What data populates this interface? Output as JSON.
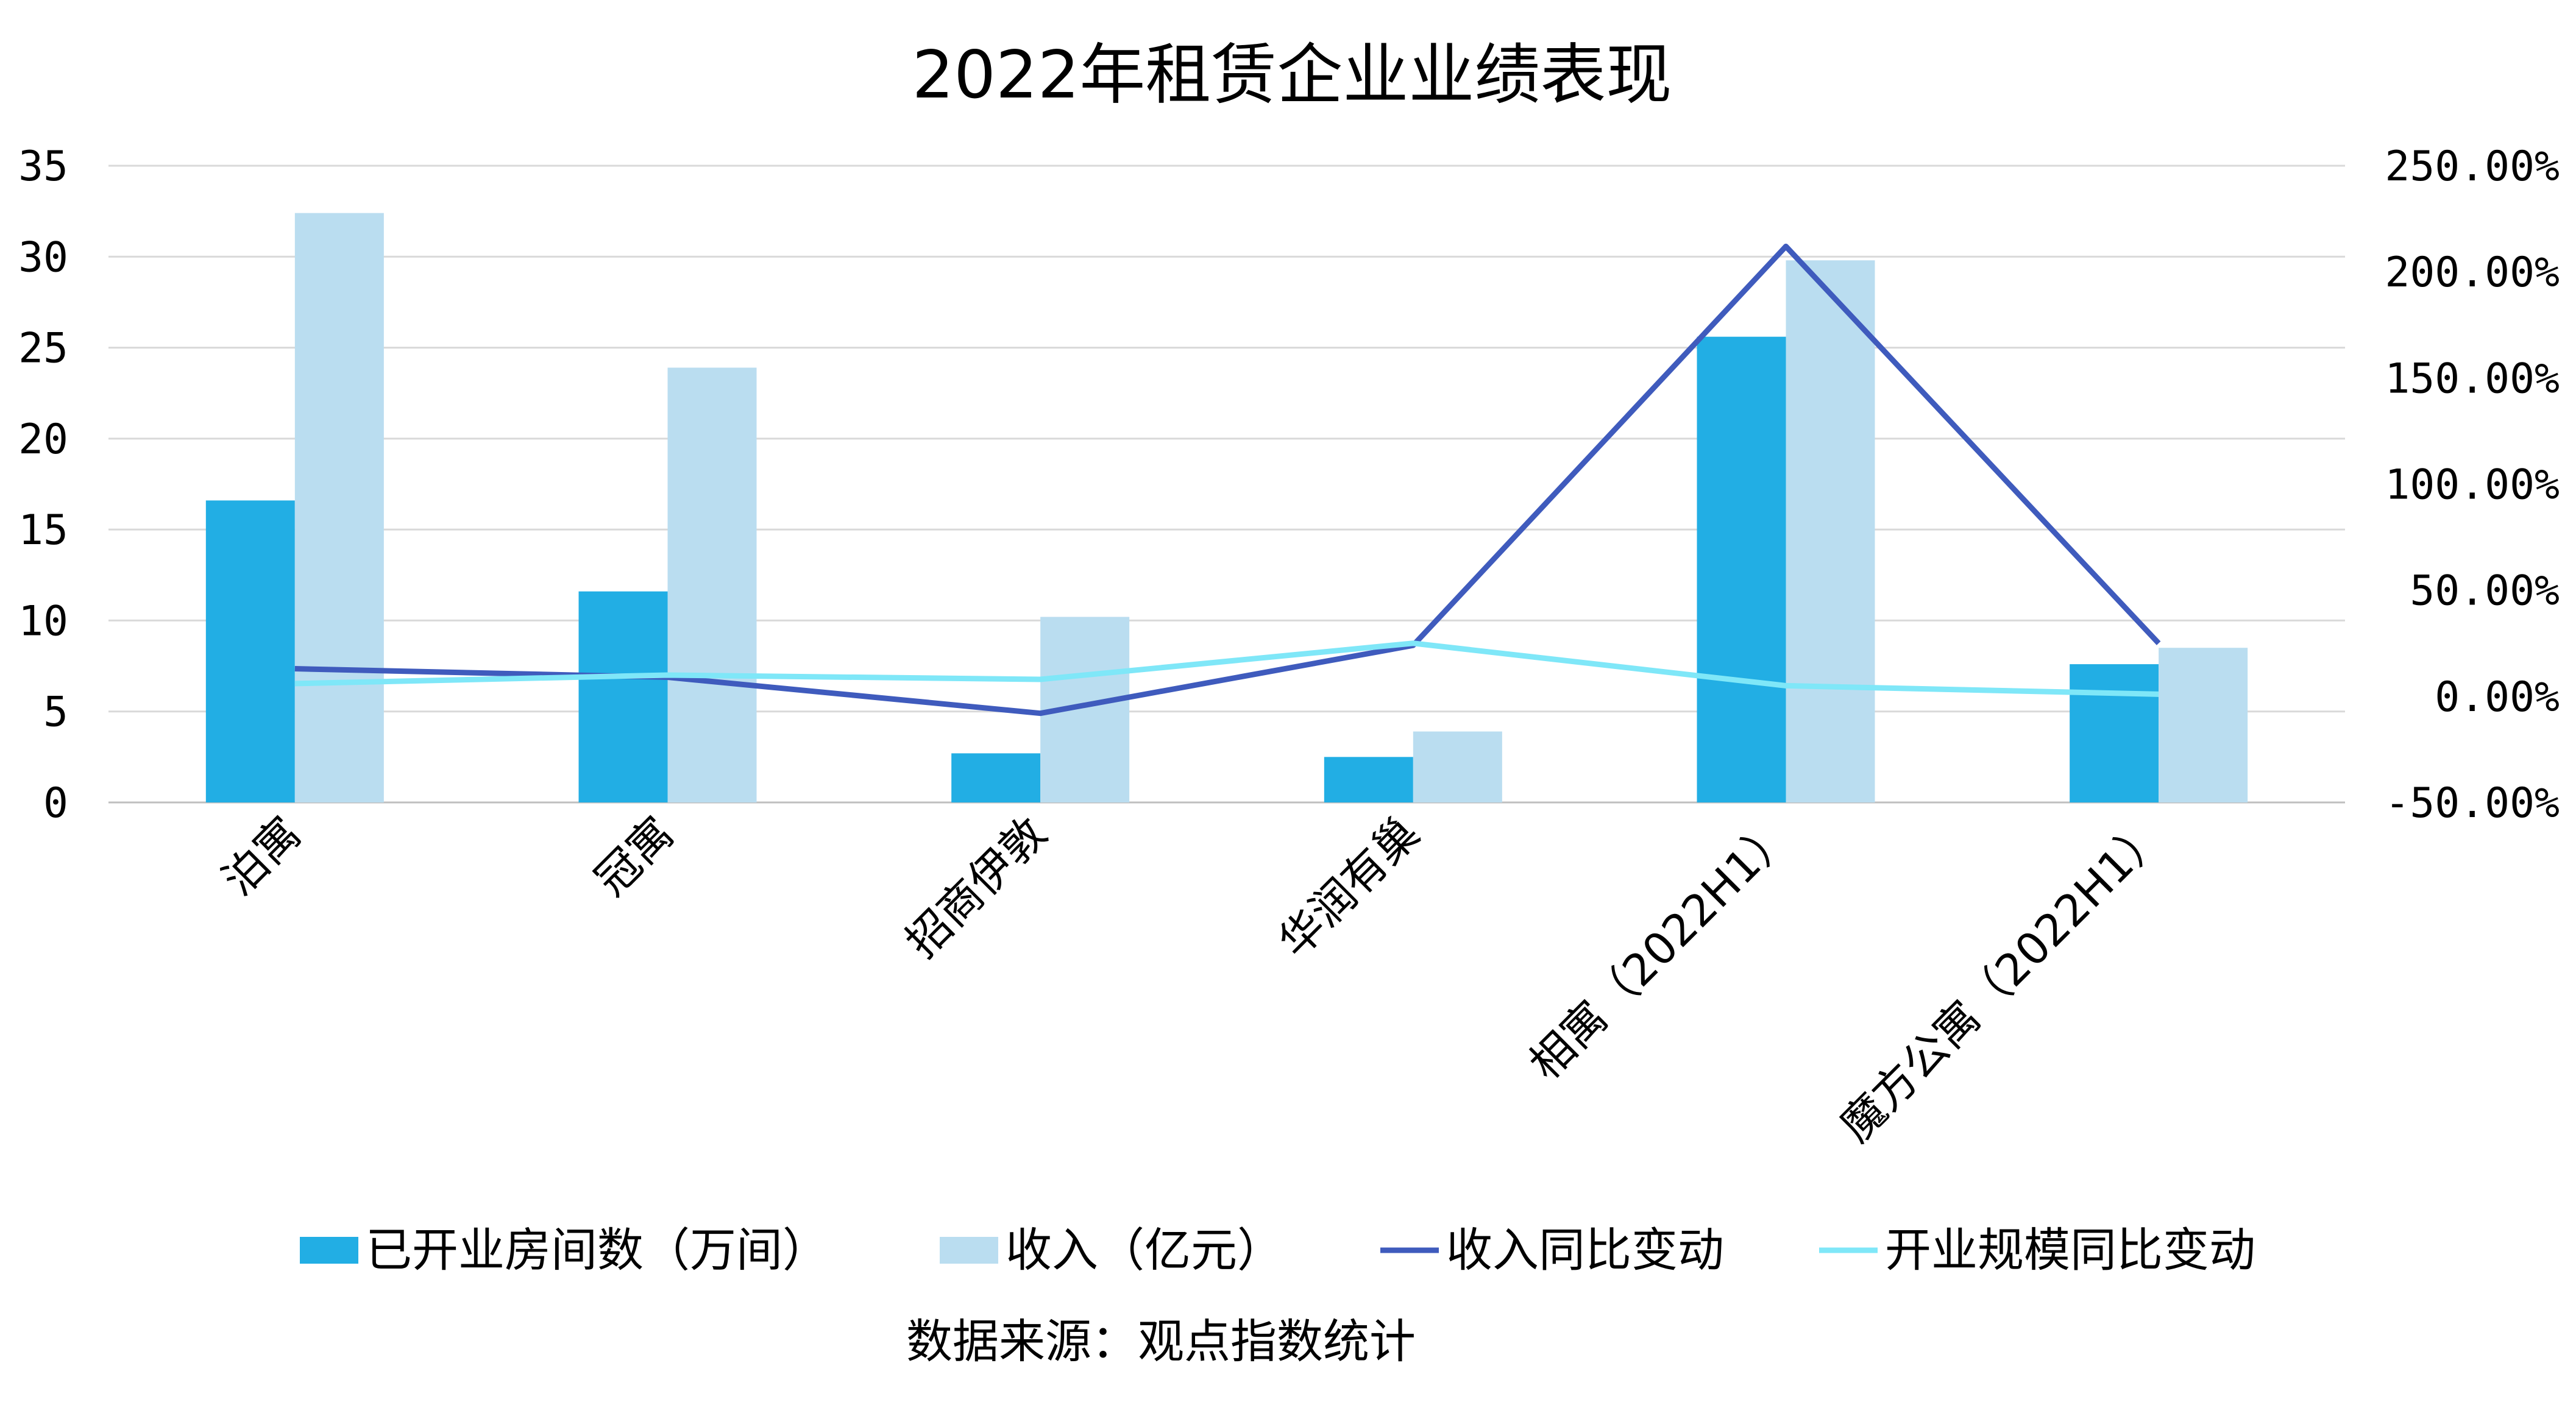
{
  "chart_data": {
    "type": "bar",
    "title": "2022年租赁企业业绩表现",
    "categories": [
      "泊寓",
      "冠寓",
      "招商伊敦",
      "华润有巢",
      "相寓（2022H1）",
      "魔方公寓（2022H1）"
    ],
    "series": [
      {
        "name": "已开业房间数（万间）",
        "type": "bar",
        "axis": "left",
        "color": "#22AEE4",
        "values": [
          16.6,
          11.6,
          2.7,
          2.5,
          25.6,
          7.6
        ]
      },
      {
        "name": "收入（亿元）",
        "type": "bar",
        "axis": "left",
        "color": "#BADDF0",
        "values": [
          32.4,
          23.9,
          10.2,
          3.9,
          29.8,
          8.5
        ]
      },
      {
        "name": "收入同比变动",
        "type": "line",
        "axis": "right",
        "color": "#3F5BBD",
        "values": [
          0.13,
          0.09,
          -0.08,
          0.24,
          2.12,
          0.25
        ]
      },
      {
        "name": "开业规模同比变动",
        "type": "line",
        "axis": "right",
        "color": "#7FE7F8",
        "values": [
          0.06,
          0.1,
          0.08,
          0.25,
          0.05,
          0.01
        ]
      }
    ],
    "y_left": {
      "min": 0,
      "max": 35,
      "step": 5,
      "ticks": [
        "0",
        "5",
        "10",
        "15",
        "20",
        "25",
        "30",
        "35"
      ]
    },
    "y_right": {
      "min": -0.5,
      "max": 2.5,
      "step": 0.5,
      "ticks": [
        "-50.00%",
        "0.00%",
        "50.00%",
        "100.00%",
        "150.00%",
        "200.00%",
        "250.00%"
      ]
    },
    "grid": true,
    "legend_position": "bottom",
    "source": "数据来源：观点指数统计"
  }
}
